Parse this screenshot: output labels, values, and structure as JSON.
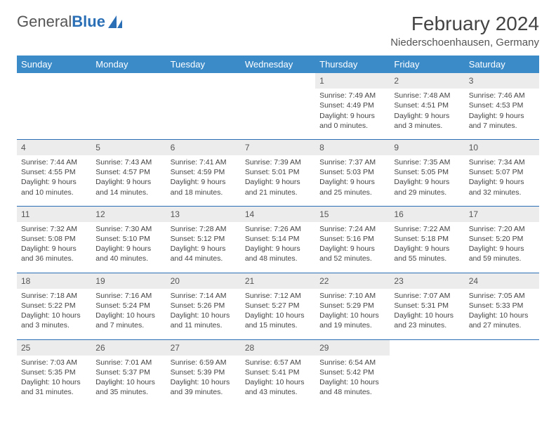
{
  "logo": {
    "text_main": "General",
    "text_accent": "Blue",
    "accent_color": "#2a6fb5"
  },
  "title": "February 2024",
  "location": "Niederschoenhausen, Germany",
  "header_bg": "#3b8bc9",
  "header_fg": "#ffffff",
  "daynum_bg": "#ececec",
  "rule_color": "#2a6fb5",
  "weekdays": [
    "Sunday",
    "Monday",
    "Tuesday",
    "Wednesday",
    "Thursday",
    "Friday",
    "Saturday"
  ],
  "weeks": [
    [
      {
        "n": "",
        "rise": "",
        "set": "",
        "dayh": "",
        "daym": ""
      },
      {
        "n": "",
        "rise": "",
        "set": "",
        "dayh": "",
        "daym": ""
      },
      {
        "n": "",
        "rise": "",
        "set": "",
        "dayh": "",
        "daym": ""
      },
      {
        "n": "",
        "rise": "",
        "set": "",
        "dayh": "",
        "daym": ""
      },
      {
        "n": "1",
        "rise": "7:49 AM",
        "set": "4:49 PM",
        "dayh": "9",
        "daym": "0"
      },
      {
        "n": "2",
        "rise": "7:48 AM",
        "set": "4:51 PM",
        "dayh": "9",
        "daym": "3"
      },
      {
        "n": "3",
        "rise": "7:46 AM",
        "set": "4:53 PM",
        "dayh": "9",
        "daym": "7"
      }
    ],
    [
      {
        "n": "4",
        "rise": "7:44 AM",
        "set": "4:55 PM",
        "dayh": "9",
        "daym": "10"
      },
      {
        "n": "5",
        "rise": "7:43 AM",
        "set": "4:57 PM",
        "dayh": "9",
        "daym": "14"
      },
      {
        "n": "6",
        "rise": "7:41 AM",
        "set": "4:59 PM",
        "dayh": "9",
        "daym": "18"
      },
      {
        "n": "7",
        "rise": "7:39 AM",
        "set": "5:01 PM",
        "dayh": "9",
        "daym": "21"
      },
      {
        "n": "8",
        "rise": "7:37 AM",
        "set": "5:03 PM",
        "dayh": "9",
        "daym": "25"
      },
      {
        "n": "9",
        "rise": "7:35 AM",
        "set": "5:05 PM",
        "dayh": "9",
        "daym": "29"
      },
      {
        "n": "10",
        "rise": "7:34 AM",
        "set": "5:07 PM",
        "dayh": "9",
        "daym": "32"
      }
    ],
    [
      {
        "n": "11",
        "rise": "7:32 AM",
        "set": "5:08 PM",
        "dayh": "9",
        "daym": "36"
      },
      {
        "n": "12",
        "rise": "7:30 AM",
        "set": "5:10 PM",
        "dayh": "9",
        "daym": "40"
      },
      {
        "n": "13",
        "rise": "7:28 AM",
        "set": "5:12 PM",
        "dayh": "9",
        "daym": "44"
      },
      {
        "n": "14",
        "rise": "7:26 AM",
        "set": "5:14 PM",
        "dayh": "9",
        "daym": "48"
      },
      {
        "n": "15",
        "rise": "7:24 AM",
        "set": "5:16 PM",
        "dayh": "9",
        "daym": "52"
      },
      {
        "n": "16",
        "rise": "7:22 AM",
        "set": "5:18 PM",
        "dayh": "9",
        "daym": "55"
      },
      {
        "n": "17",
        "rise": "7:20 AM",
        "set": "5:20 PM",
        "dayh": "9",
        "daym": "59"
      }
    ],
    [
      {
        "n": "18",
        "rise": "7:18 AM",
        "set": "5:22 PM",
        "dayh": "10",
        "daym": "3"
      },
      {
        "n": "19",
        "rise": "7:16 AM",
        "set": "5:24 PM",
        "dayh": "10",
        "daym": "7"
      },
      {
        "n": "20",
        "rise": "7:14 AM",
        "set": "5:26 PM",
        "dayh": "10",
        "daym": "11"
      },
      {
        "n": "21",
        "rise": "7:12 AM",
        "set": "5:27 PM",
        "dayh": "10",
        "daym": "15"
      },
      {
        "n": "22",
        "rise": "7:10 AM",
        "set": "5:29 PM",
        "dayh": "10",
        "daym": "19"
      },
      {
        "n": "23",
        "rise": "7:07 AM",
        "set": "5:31 PM",
        "dayh": "10",
        "daym": "23"
      },
      {
        "n": "24",
        "rise": "7:05 AM",
        "set": "5:33 PM",
        "dayh": "10",
        "daym": "27"
      }
    ],
    [
      {
        "n": "25",
        "rise": "7:03 AM",
        "set": "5:35 PM",
        "dayh": "10",
        "daym": "31"
      },
      {
        "n": "26",
        "rise": "7:01 AM",
        "set": "5:37 PM",
        "dayh": "10",
        "daym": "35"
      },
      {
        "n": "27",
        "rise": "6:59 AM",
        "set": "5:39 PM",
        "dayh": "10",
        "daym": "39"
      },
      {
        "n": "28",
        "rise": "6:57 AM",
        "set": "5:41 PM",
        "dayh": "10",
        "daym": "43"
      },
      {
        "n": "29",
        "rise": "6:54 AM",
        "set": "5:42 PM",
        "dayh": "10",
        "daym": "48"
      },
      {
        "n": "",
        "rise": "",
        "set": "",
        "dayh": "",
        "daym": ""
      },
      {
        "n": "",
        "rise": "",
        "set": "",
        "dayh": "",
        "daym": ""
      }
    ]
  ]
}
